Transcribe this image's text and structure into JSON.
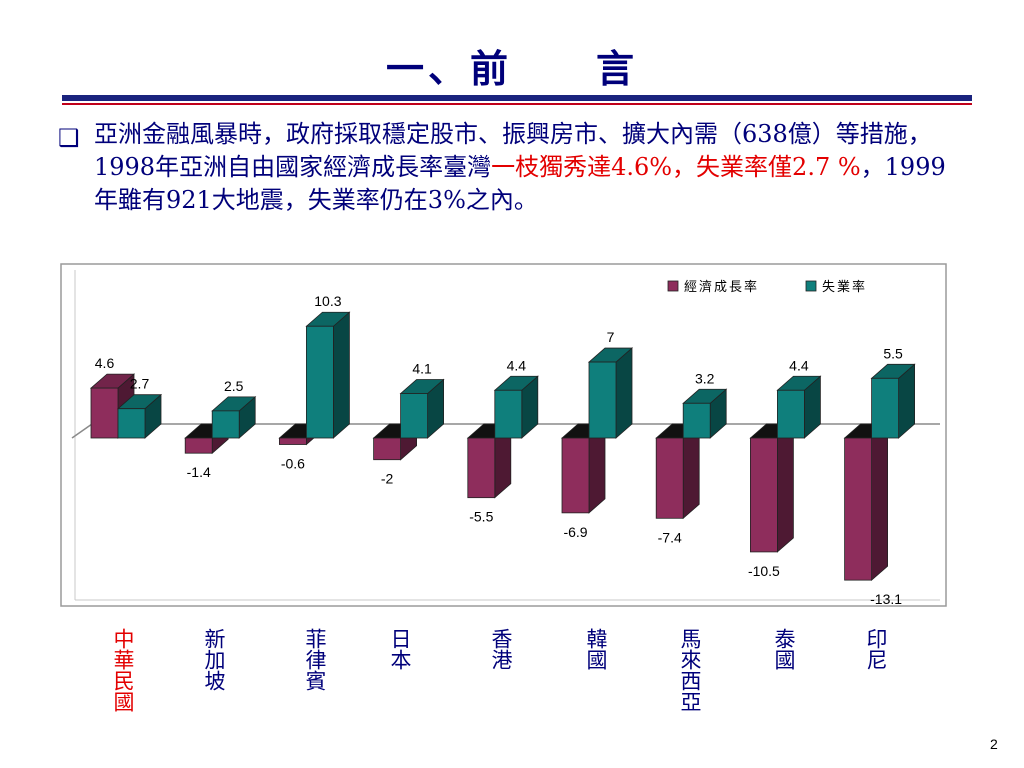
{
  "slide": {
    "title": "一、前　　言",
    "bullet_icon": "checkbox-square-icon",
    "paragraph": [
      {
        "text": "亞洲金融風暴時，政府採取穩定股市、振興房市、擴大內需（638億）等措施，1998年亞洲自由國家經濟成長率臺灣",
        "highlight": false
      },
      {
        "text": "一枝獨秀達4.6%，失業率僅2.7 %",
        "highlight": true
      },
      {
        "text": "，1999年雖有921大地震，失業率仍在3%之內。",
        "highlight": false
      }
    ],
    "page_number": "2"
  },
  "colors": {
    "title": "#00007a",
    "highlight": "#e30000",
    "growth": "#8e2d5c",
    "unemployment": "#0f7f7c"
  },
  "chart_data": {
    "type": "bar",
    "categories": [
      "中華民國",
      "新加坡",
      "菲律賓",
      "日本",
      "香港",
      "韓國",
      "馬來西亞",
      "泰國",
      "印尼"
    ],
    "category_colors": [
      "#e30000",
      "#00007a",
      "#00007a",
      "#00007a",
      "#00007a",
      "#00007a",
      "#00007a",
      "#00007a",
      "#00007a"
    ],
    "series": [
      {
        "name": "經濟成長率",
        "values": [
          4.6,
          -1.4,
          -0.6,
          -2,
          -5.5,
          -6.9,
          -7.4,
          -10.5,
          -13.1
        ]
      },
      {
        "name": "失業率",
        "values": [
          2.7,
          2.5,
          10.3,
          4.1,
          4.4,
          7,
          3.2,
          4.4,
          5.5
        ]
      }
    ],
    "legend_position": "top-right",
    "style": "3d-clustered-column"
  }
}
